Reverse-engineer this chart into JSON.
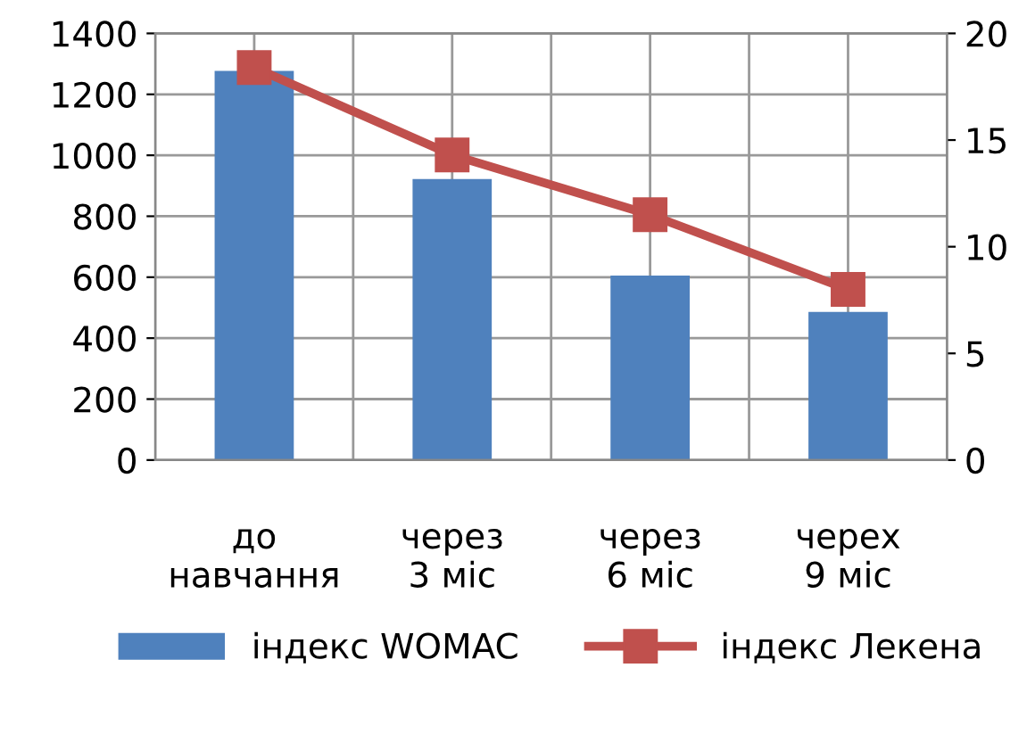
{
  "chart_data": {
    "type": "bar",
    "categories": [
      "до навчання",
      "через 3 міс",
      "через 6 міс",
      "черех 9 міс"
    ],
    "series": [
      {
        "name": "індекс WOMAC",
        "color": "#4f81bd",
        "values": [
          1277,
          922,
          605,
          486
        ]
      },
      {
        "name": "індекс Лекена",
        "color": "#c0504d",
        "type": "line",
        "axis": "y2",
        "marker": "square",
        "values": [
          18.4,
          14.3,
          11.5,
          8.0
        ]
      }
    ],
    "ylim": [
      0,
      1400
    ],
    "yticks": [
      0,
      200,
      400,
      600,
      800,
      1000,
      1200,
      1400
    ],
    "y2lim": [
      0,
      20
    ],
    "y2ticks": [
      0,
      5,
      10,
      15,
      20
    ],
    "grid": true,
    "legend": "bottom"
  }
}
